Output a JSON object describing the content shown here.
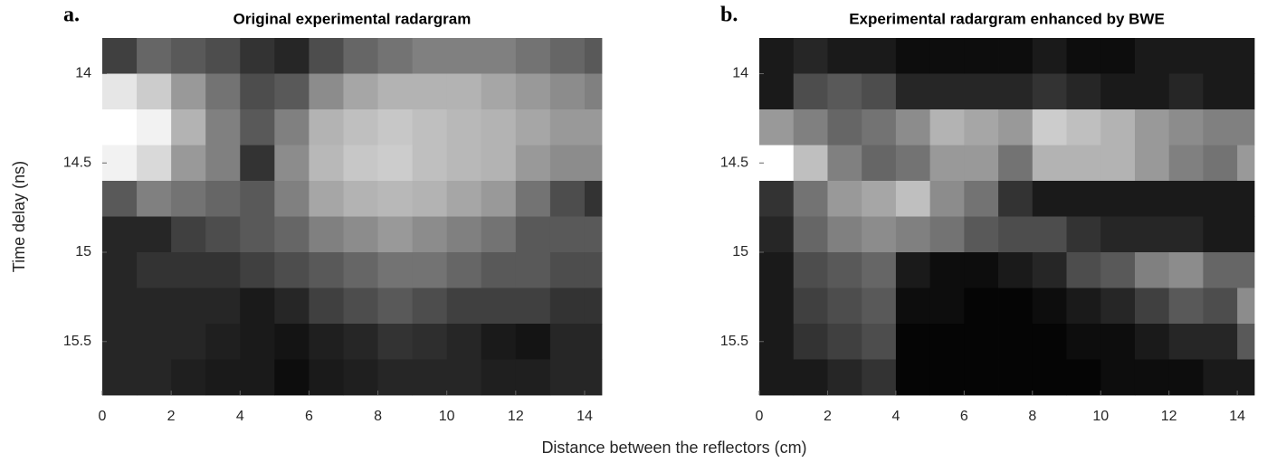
{
  "xlabel": "Distance between the reflectors (cm)",
  "chart_data": [
    {
      "type": "heatmap",
      "panel": "a.",
      "title": "Original experimental radargram",
      "ylabel": "Time delay (ns)",
      "colormap": "gray",
      "xlim": [
        0,
        14.5
      ],
      "ylim": [
        13.8,
        15.8
      ],
      "y_inverted": true,
      "xticks": [
        0,
        2,
        4,
        6,
        8,
        10,
        12,
        14
      ],
      "yticks": [
        14,
        14.5,
        15,
        15.5
      ],
      "x_bins": [
        0,
        1,
        2,
        3,
        4,
        5,
        6,
        7,
        8,
        9,
        10,
        11,
        12,
        13,
        14,
        14.5
      ],
      "y_bins": [
        13.8,
        14.0,
        14.2,
        14.4,
        14.6,
        14.8,
        15.0,
        15.2,
        15.4,
        15.6,
        15.8
      ],
      "z": [
        [
          0.25,
          0.4,
          0.35,
          0.3,
          0.2,
          0.15,
          0.3,
          0.4,
          0.45,
          0.5,
          0.5,
          0.5,
          0.45,
          0.4,
          0.35
        ],
        [
          0.9,
          0.8,
          0.6,
          0.45,
          0.3,
          0.35,
          0.55,
          0.65,
          0.7,
          0.7,
          0.7,
          0.65,
          0.6,
          0.55,
          0.5
        ],
        [
          1,
          0.95,
          0.7,
          0.5,
          0.35,
          0.5,
          0.7,
          0.75,
          0.78,
          0.75,
          0.72,
          0.7,
          0.65,
          0.6,
          0.6
        ],
        [
          0.95,
          0.85,
          0.6,
          0.5,
          0.2,
          0.55,
          0.72,
          0.78,
          0.8,
          0.75,
          0.72,
          0.7,
          0.6,
          0.55,
          0.55
        ],
        [
          0.35,
          0.5,
          0.45,
          0.4,
          0.35,
          0.5,
          0.65,
          0.7,
          0.72,
          0.7,
          0.65,
          0.6,
          0.45,
          0.3,
          0.2
        ],
        [
          0.15,
          0.15,
          0.25,
          0.3,
          0.35,
          0.4,
          0.5,
          0.55,
          0.6,
          0.55,
          0.5,
          0.45,
          0.35,
          0.35,
          0.35
        ],
        [
          0.15,
          0.2,
          0.2,
          0.2,
          0.25,
          0.3,
          0.35,
          0.4,
          0.45,
          0.45,
          0.4,
          0.35,
          0.35,
          0.3,
          0.3
        ],
        [
          0.15,
          0.15,
          0.15,
          0.15,
          0.1,
          0.15,
          0.25,
          0.3,
          0.35,
          0.3,
          0.25,
          0.25,
          0.25,
          0.2,
          0.2
        ],
        [
          0.15,
          0.15,
          0.15,
          0.12,
          0.1,
          0.08,
          0.12,
          0.15,
          0.2,
          0.18,
          0.15,
          0.1,
          0.08,
          0.15,
          0.15
        ],
        [
          0.15,
          0.15,
          0.12,
          0.1,
          0.1,
          0.05,
          0.1,
          0.12,
          0.15,
          0.15,
          0.15,
          0.12,
          0.12,
          0.15,
          0.15
        ]
      ]
    },
    {
      "type": "heatmap",
      "panel": "b.",
      "title": "Experimental radargram enhanced by BWE",
      "colormap": "gray",
      "xlim": [
        0,
        14.5
      ],
      "ylim": [
        13.8,
        15.8
      ],
      "y_inverted": true,
      "xticks": [
        0,
        2,
        4,
        6,
        8,
        10,
        12,
        14
      ],
      "yticks": [
        14,
        14.5,
        15,
        15.5
      ],
      "x_bins": [
        0,
        1,
        2,
        3,
        4,
        5,
        6,
        7,
        8,
        9,
        10,
        11,
        12,
        13,
        14,
        14.5
      ],
      "y_bins": [
        13.8,
        14.0,
        14.2,
        14.4,
        14.6,
        14.8,
        15.0,
        15.2,
        15.4,
        15.6,
        15.8
      ],
      "z": [
        [
          0.1,
          0.15,
          0.1,
          0.1,
          0.05,
          0.05,
          0.05,
          0.05,
          0.1,
          0.05,
          0.05,
          0.1,
          0.1,
          0.1,
          0.1
        ],
        [
          0.1,
          0.3,
          0.35,
          0.3,
          0.15,
          0.15,
          0.15,
          0.15,
          0.2,
          0.15,
          0.1,
          0.1,
          0.15,
          0.1,
          0.1
        ],
        [
          0.6,
          0.5,
          0.4,
          0.45,
          0.55,
          0.7,
          0.65,
          0.6,
          0.8,
          0.75,
          0.7,
          0.6,
          0.55,
          0.5,
          0.5
        ],
        [
          1,
          0.75,
          0.5,
          0.4,
          0.45,
          0.6,
          0.6,
          0.45,
          0.7,
          0.7,
          0.7,
          0.6,
          0.5,
          0.45,
          0.6
        ],
        [
          0.2,
          0.45,
          0.6,
          0.65,
          0.75,
          0.55,
          0.45,
          0.2,
          0.1,
          0.1,
          0.1,
          0.1,
          0.1,
          0.1,
          0.1
        ],
        [
          0.15,
          0.4,
          0.5,
          0.55,
          0.5,
          0.45,
          0.35,
          0.3,
          0.3,
          0.2,
          0.15,
          0.15,
          0.15,
          0.1,
          0.1
        ],
        [
          0.1,
          0.3,
          0.35,
          0.4,
          0.1,
          0.05,
          0.05,
          0.1,
          0.15,
          0.3,
          0.35,
          0.5,
          0.55,
          0.4,
          0.4
        ],
        [
          0.1,
          0.25,
          0.3,
          0.35,
          0.05,
          0.05,
          0.02,
          0.02,
          0.05,
          0.1,
          0.15,
          0.25,
          0.35,
          0.3,
          0.55
        ],
        [
          0.1,
          0.2,
          0.25,
          0.3,
          0.02,
          0.02,
          0.02,
          0.02,
          0.02,
          0.05,
          0.05,
          0.1,
          0.15,
          0.15,
          0.35
        ],
        [
          0.1,
          0.1,
          0.15,
          0.2,
          0.02,
          0.02,
          0.02,
          0.02,
          0.02,
          0.02,
          0.05,
          0.05,
          0.05,
          0.1,
          0.1
        ]
      ]
    }
  ]
}
